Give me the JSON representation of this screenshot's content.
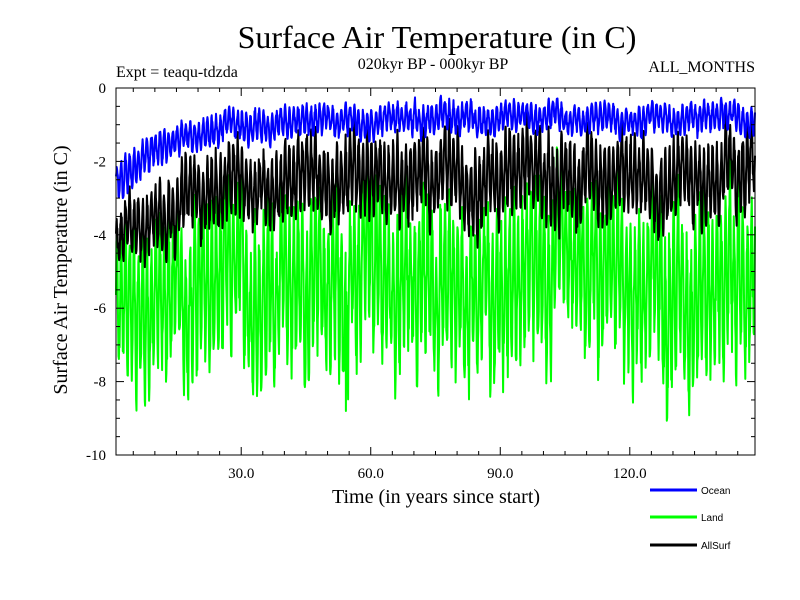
{
  "chart_data": {
    "type": "line",
    "title": "Surface Air Temperature (in C)",
    "subtitle": "020kyr BP - 000kyr BP",
    "experiment_label": "Expt = teaqu-tdzda",
    "months_label": "ALL_MONTHS",
    "xlabel": "Time (in years since start)",
    "ylabel": "Surface Air Temperature (in C)",
    "xlim": [
      1,
      149
    ],
    "ylim": [
      -10,
      0
    ],
    "x_ticks": [
      30,
      60,
      90,
      120
    ],
    "x_tick_labels": [
      "30.0",
      "60.0",
      "90.0",
      "120.0"
    ],
    "y_ticks": [
      0,
      -2,
      -4,
      -6,
      -8,
      -10
    ],
    "y_tick_labels": [
      "0",
      "-2",
      "-4",
      "-6",
      "-8",
      "-10"
    ],
    "grid": false,
    "legend_position": "bottom-right",
    "series": [
      {
        "name": "Ocean",
        "color": "#0000ff",
        "monthly_range_start": [
          -3.1,
          -2.0
        ],
        "monthly_range_end": [
          -1.2,
          -0.4
        ],
        "mean_start": -2.6,
        "mean_end": -0.75
      },
      {
        "name": "Land",
        "color": "#00ff00",
        "monthly_range_start": [
          -8.3,
          -4.2
        ],
        "monthly_range_end": [
          -7.6,
          -3.0
        ],
        "mean_start": -6.0,
        "mean_end": -5.2,
        "min_value": -8.8
      },
      {
        "name": "AllSurf",
        "color": "#000000",
        "monthly_range_start": [
          -5.0,
          -3.5
        ],
        "monthly_range_end": [
          -3.5,
          -1.3
        ],
        "mean_start": -4.3,
        "mean_end": -2.6
      }
    ]
  }
}
